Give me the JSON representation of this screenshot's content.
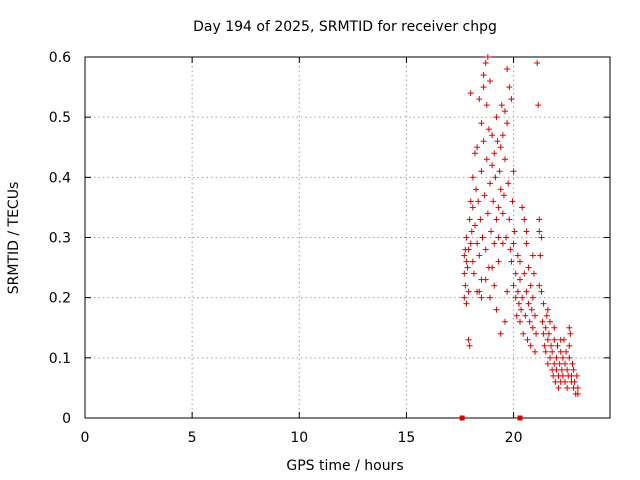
{
  "chart_data": {
    "type": "scatter",
    "title": "Day 194 of 2025, SRMTID for receiver chpg",
    "xlabel": "GPS time / hours",
    "ylabel": "SRMTID / TECUs",
    "xlim": [
      0,
      24.5
    ],
    "ylim": [
      0,
      0.6
    ],
    "xticks": [
      0,
      5,
      10,
      15,
      20
    ],
    "yticks": [
      0,
      0.1,
      0.2,
      0.3,
      0.4,
      0.5,
      0.6
    ],
    "xtick_labels": [
      "0",
      "5",
      "10",
      "15",
      "20"
    ],
    "ytick_labels": [
      "0",
      "0.1",
      "0.2",
      "0.3",
      "0.4",
      "0.5",
      "0.6"
    ],
    "grid": true,
    "marker": "+",
    "color": "#e00000",
    "baseline_markers": [
      {
        "x": 17.6,
        "y": 0
      },
      {
        "x": 20.3,
        "y": 0
      }
    ],
    "series": [
      {
        "name": "SRMTID",
        "points": [
          [
            17.7,
            0.27
          ],
          [
            17.7,
            0.24
          ],
          [
            17.7,
            0.2
          ],
          [
            17.75,
            0.28
          ],
          [
            17.75,
            0.22
          ],
          [
            17.8,
            0.26
          ],
          [
            17.8,
            0.3
          ],
          [
            17.8,
            0.19
          ],
          [
            17.85,
            0.25
          ],
          [
            17.9,
            0.21
          ],
          [
            17.9,
            0.13
          ],
          [
            17.95,
            0.12
          ],
          [
            17.9,
            0.28
          ],
          [
            17.95,
            0.33
          ],
          [
            18.0,
            0.54
          ],
          [
            18.0,
            0.29
          ],
          [
            18.0,
            0.36
          ],
          [
            18.05,
            0.31
          ],
          [
            18.1,
            0.4
          ],
          [
            18.1,
            0.35
          ],
          [
            18.1,
            0.26
          ],
          [
            18.15,
            0.24
          ],
          [
            18.2,
            0.32
          ],
          [
            18.2,
            0.44
          ],
          [
            18.25,
            0.38
          ],
          [
            18.3,
            0.29
          ],
          [
            18.3,
            0.21
          ],
          [
            18.3,
            0.45
          ],
          [
            18.35,
            0.36
          ],
          [
            18.4,
            0.53
          ],
          [
            18.4,
            0.27
          ],
          [
            18.45,
            0.33
          ],
          [
            18.5,
            0.49
          ],
          [
            18.5,
            0.41
          ],
          [
            18.5,
            0.23
          ],
          [
            18.55,
            0.3
          ],
          [
            18.6,
            0.57
          ],
          [
            18.6,
            0.55
          ],
          [
            18.6,
            0.46
          ],
          [
            18.65,
            0.37
          ],
          [
            18.7,
            0.59
          ],
          [
            18.7,
            0.28
          ],
          [
            18.75,
            0.52
          ],
          [
            18.75,
            0.43
          ],
          [
            18.8,
            0.6
          ],
          [
            18.8,
            0.34
          ],
          [
            18.85,
            0.48
          ],
          [
            18.85,
            0.25
          ],
          [
            18.9,
            0.56
          ],
          [
            18.9,
            0.39
          ],
          [
            18.95,
            0.31
          ],
          [
            19.0,
            0.47
          ],
          [
            19.0,
            0.42
          ],
          [
            19.05,
            0.36
          ],
          [
            19.1,
            0.29
          ],
          [
            19.1,
            0.44
          ],
          [
            19.15,
            0.4
          ],
          [
            19.2,
            0.5
          ],
          [
            19.2,
            0.33
          ],
          [
            19.25,
            0.46
          ],
          [
            19.3,
            0.35
          ],
          [
            19.3,
            0.3
          ],
          [
            19.35,
            0.41
          ],
          [
            19.4,
            0.45
          ],
          [
            19.4,
            0.38
          ],
          [
            19.45,
            0.52
          ],
          [
            19.5,
            0.34
          ],
          [
            19.5,
            0.47
          ],
          [
            19.55,
            0.37
          ],
          [
            19.6,
            0.51
          ],
          [
            19.6,
            0.43
          ],
          [
            19.65,
            0.3
          ],
          [
            19.7,
            0.58
          ],
          [
            19.7,
            0.49
          ],
          [
            19.75,
            0.39
          ],
          [
            19.8,
            0.55
          ],
          [
            19.8,
            0.33
          ],
          [
            19.85,
            0.28
          ],
          [
            19.9,
            0.53
          ],
          [
            19.9,
            0.26
          ],
          [
            19.95,
            0.36
          ],
          [
            20.0,
            0.41
          ],
          [
            20.0,
            0.22
          ],
          [
            20.05,
            0.31
          ],
          [
            19.5,
            0.29
          ],
          [
            19.3,
            0.26
          ],
          [
            19.0,
            0.25
          ],
          [
            18.7,
            0.23
          ],
          [
            18.5,
            0.2
          ],
          [
            19.2,
            0.18
          ],
          [
            19.4,
            0.14
          ],
          [
            19.6,
            0.16
          ],
          [
            19.1,
            0.22
          ],
          [
            18.9,
            0.2
          ],
          [
            18.4,
            0.21
          ],
          [
            19.7,
            0.21
          ],
          [
            20.1,
            0.2
          ],
          [
            20.1,
            0.24
          ],
          [
            20.15,
            0.17
          ],
          [
            20.2,
            0.21
          ],
          [
            20.2,
            0.27
          ],
          [
            20.25,
            0.19
          ],
          [
            20.3,
            0.23
          ],
          [
            20.3,
            0.16
          ],
          [
            20.35,
            0.18
          ],
          [
            20.4,
            0.35
          ],
          [
            20.4,
            0.2
          ],
          [
            20.45,
            0.14
          ],
          [
            20.5,
            0.33
          ],
          [
            20.5,
            0.24
          ],
          [
            20.55,
            0.17
          ],
          [
            20.6,
            0.29
          ],
          [
            20.6,
            0.21
          ],
          [
            20.65,
            0.13
          ],
          [
            20.7,
            0.25
          ],
          [
            20.7,
            0.19
          ],
          [
            20.75,
            0.16
          ],
          [
            20.8,
            0.22
          ],
          [
            20.8,
            0.12
          ],
          [
            20.85,
            0.18
          ],
          [
            20.9,
            0.2
          ],
          [
            20.9,
            0.15
          ],
          [
            20.95,
            0.24
          ],
          [
            21.0,
            0.11
          ],
          [
            21.0,
            0.17
          ],
          [
            21.05,
            0.14
          ],
          [
            21.1,
            0.59
          ],
          [
            21.15,
            0.52
          ],
          [
            21.2,
            0.33
          ],
          [
            21.2,
            0.31
          ],
          [
            21.25,
            0.27
          ],
          [
            21.3,
            0.3
          ],
          [
            21.3,
            0.21
          ],
          [
            21.35,
            0.16
          ],
          [
            21.4,
            0.14
          ],
          [
            21.4,
            0.19
          ],
          [
            21.45,
            0.12
          ],
          [
            21.5,
            0.15
          ],
          [
            21.5,
            0.11
          ],
          [
            21.55,
            0.17
          ],
          [
            21.6,
            0.13
          ],
          [
            21.6,
            0.09
          ],
          [
            21.65,
            0.14
          ],
          [
            21.7,
            0.1
          ],
          [
            21.7,
            0.16
          ],
          [
            21.75,
            0.12
          ],
          [
            21.8,
            0.08
          ],
          [
            21.8,
            0.11
          ],
          [
            21.85,
            0.07
          ],
          [
            21.9,
            0.13
          ],
          [
            21.9,
            0.09
          ],
          [
            21.95,
            0.06
          ],
          [
            22.0,
            0.1
          ],
          [
            22.0,
            0.08
          ],
          [
            22.05,
            0.12
          ],
          [
            22.1,
            0.07
          ],
          [
            22.1,
            0.05
          ],
          [
            22.15,
            0.09
          ],
          [
            22.2,
            0.11
          ],
          [
            22.2,
            0.06
          ],
          [
            22.25,
            0.08
          ],
          [
            22.3,
            0.1
          ],
          [
            22.3,
            0.07
          ],
          [
            22.35,
            0.13
          ],
          [
            22.4,
            0.06
          ],
          [
            22.4,
            0.09
          ],
          [
            22.45,
            0.11
          ],
          [
            22.5,
            0.08
          ],
          [
            22.5,
            0.05
          ],
          [
            22.55,
            0.07
          ],
          [
            22.6,
            0.15
          ],
          [
            22.6,
            0.1
          ],
          [
            22.65,
            0.14
          ],
          [
            22.7,
            0.07
          ],
          [
            22.7,
            0.06
          ],
          [
            22.75,
            0.09
          ],
          [
            22.8,
            0.05
          ],
          [
            22.8,
            0.08
          ],
          [
            22.85,
            0.06
          ],
          [
            22.9,
            0.04
          ],
          [
            22.95,
            0.07
          ],
          [
            23.0,
            0.05
          ],
          [
            23.0,
            0.04
          ],
          [
            21.9,
            0.15
          ],
          [
            22.2,
            0.13
          ],
          [
            22.6,
            0.12
          ],
          [
            21.6,
            0.18
          ],
          [
            21.2,
            0.22
          ],
          [
            20.9,
            0.27
          ],
          [
            20.6,
            0.31
          ],
          [
            20.3,
            0.26
          ],
          [
            20.0,
            0.29
          ]
        ]
      }
    ]
  }
}
